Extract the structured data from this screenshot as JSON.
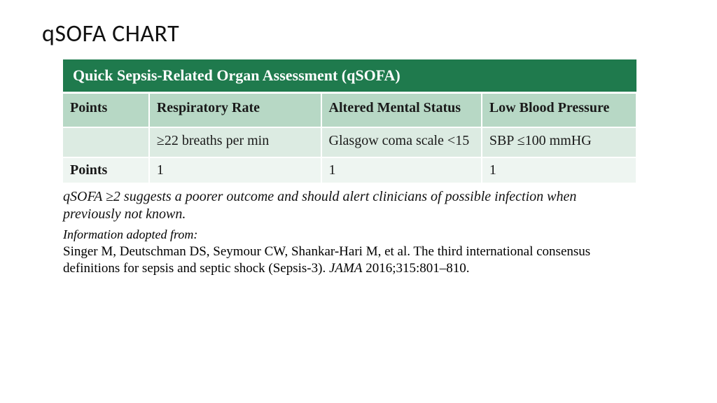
{
  "slide": {
    "title": "qSOFA CHART"
  },
  "table": {
    "type": "table",
    "title": "Quick Sepsis-Related Organ Assessment (qSOFA)",
    "columns": [
      "Points",
      "Respiratory Rate",
      "Altered Mental Status",
      "Low Blood Pressure"
    ],
    "criteria": [
      "",
      "≥22 breaths per min",
      "Glasgow coma scale <15",
      "SBP ≤100 mmHG"
    ],
    "points_row_label": "Points",
    "points_row": [
      "1",
      "1",
      "1"
    ],
    "colors": {
      "title_bg": "#1f7a4d",
      "title_fg": "#ffffff",
      "header_bg": "#b7d8c5",
      "criteria_bg": "#dcebe2",
      "points_bg": "#eef5f1",
      "border": "#ffffff",
      "text": "#1a1a1a"
    },
    "font_family": "Georgia, serif",
    "header_fontsize": 20,
    "body_fontsize": 20,
    "title_fontsize": 22
  },
  "caption": {
    "advice": "qSOFA ≥2 suggests a poorer outcome and should alert clinicians of possible infection when previously not known.",
    "source_label": "Information adopted from:",
    "source_text_pre": "Singer M, Deutschman DS, Seymour CW, Shankar-Hari M, et al. The third international consensus definitions for sepsis and septic shock (Sepsis-3). ",
    "source_journal": "JAMA",
    "source_text_post": " 2016;315:801–810."
  }
}
